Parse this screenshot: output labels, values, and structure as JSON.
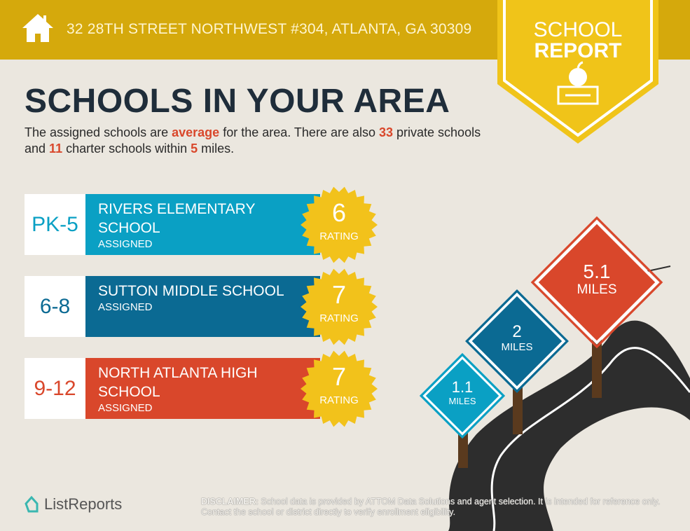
{
  "header": {
    "address": "32 28TH STREET NORTHWEST #304, ATLANTA, GA 30309",
    "icon": "house-icon"
  },
  "badge": {
    "line1": "SCHOOL",
    "line2": "REPORT",
    "icon": "apple-books-icon"
  },
  "title": "SCHOOLS IN YOUR AREA",
  "intro": {
    "p1": "The assigned schools are ",
    "quality": "average",
    "p2": " for the area. There are also ",
    "private_count": "33",
    "p3": " private schools and ",
    "charter_count": "11",
    "p4": " charter schools within ",
    "radius": "5",
    "p5": " miles."
  },
  "schools": [
    {
      "grades": "PK-5",
      "name": "RIVERS ELEMENTARY SCHOOL",
      "status": "ASSIGNED",
      "rating": "6",
      "rating_label": "RATING",
      "color": "#0aa0c4"
    },
    {
      "grades": "6-8",
      "name": "SUTTON MIDDLE SCHOOL",
      "status": "ASSIGNED",
      "rating": "7",
      "rating_label": "RATING",
      "color": "#0b6a93"
    },
    {
      "grades": "9-12",
      "name": "NORTH ATLANTA HIGH SCHOOL",
      "status": "ASSIGNED",
      "rating": "7",
      "rating_label": "RATING",
      "color": "#d9472b"
    }
  ],
  "signs": [
    {
      "value": "1.1",
      "unit": "MILES",
      "color": "#0aa0c4"
    },
    {
      "value": "2",
      "unit": "MILES",
      "color": "#0b6a93"
    },
    {
      "value": "5.1",
      "unit": "MILES",
      "color": "#d9472b"
    }
  ],
  "footer": {
    "logo": "ListReports",
    "disclaimer_label": "DISCLAIMER:",
    "disclaimer": " School data is provided by ATTOM Data Solutions and agent selection. It is intended for reference only. Contact the school or district directly to verify enrollment eligibility."
  },
  "colors": {
    "header": "#d5a90c",
    "badge": "#f0c419",
    "accent": "#d9472b",
    "background": "#ebe7df"
  }
}
